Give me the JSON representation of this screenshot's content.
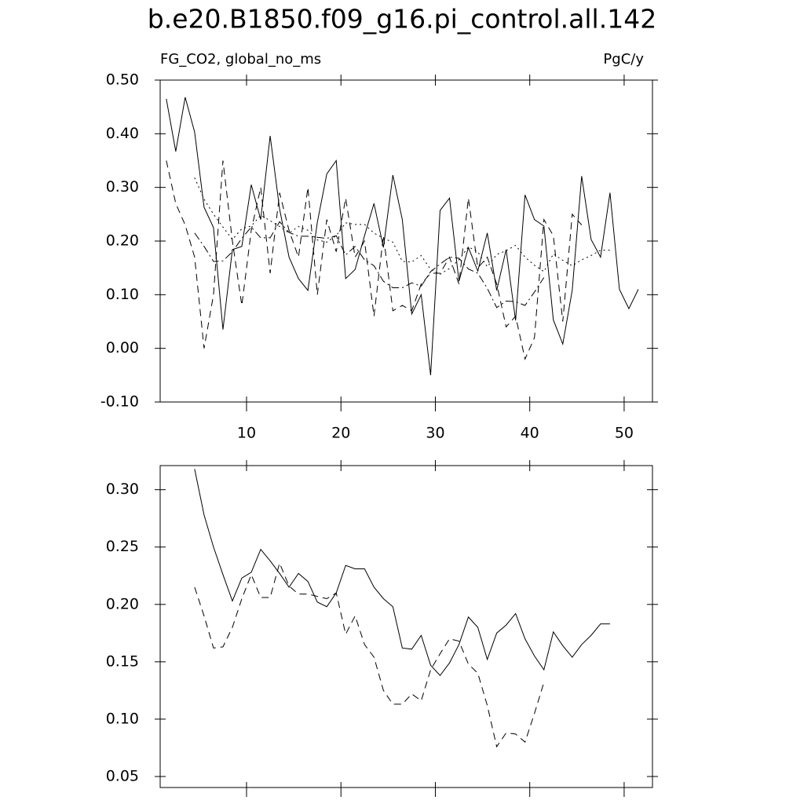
{
  "chart_data": [
    {
      "type": "line",
      "title": "b.e20.B1850.f09_g16.pi_control.all.142",
      "left_string": "FG_CO2, global_no_ms",
      "right_string": "PgC/y",
      "x": [
        1.5,
        2.5,
        3.5,
        4.5,
        5.5,
        6.5,
        7.5,
        8.5,
        9.5,
        10.5,
        11.5,
        12.5,
        13.5,
        14.5,
        15.5,
        16.5,
        17.5,
        18.5,
        19.5,
        20.5,
        21.5,
        22.5,
        23.5,
        24.5,
        25.5,
        26.5,
        27.5,
        28.5,
        29.5,
        30.5,
        31.5,
        32.5,
        33.5,
        34.5,
        35.5,
        36.5,
        37.5,
        38.5,
        39.5,
        40.5,
        41.5,
        42.5,
        43.5,
        44.5,
        45.5,
        46.5,
        47.5,
        48.5,
        49.5,
        50.5,
        51.5
      ],
      "xlim": [
        0.85,
        53
      ],
      "xticks": [
        10,
        20,
        30,
        40,
        50
      ],
      "ylim": [
        -0.1,
        0.5
      ],
      "yticks": [
        {
          "value": -0.1,
          "label": "-0.10"
        },
        {
          "value": 0,
          "label": "0.00"
        },
        {
          "value": 0.1,
          "label": "0.10"
        },
        {
          "value": 0.2,
          "label": "0.20"
        },
        {
          "value": 0.3,
          "label": "0.30"
        },
        {
          "value": 0.4,
          "label": "0.40"
        },
        {
          "value": 0.5,
          "label": "0.50"
        }
      ],
      "series": [
        {
          "color": "#000000",
          "dash": "solid",
          "values": [
            0.465,
            0.367,
            0.468,
            0.403,
            0.263,
            0.225,
            0.035,
            0.184,
            0.19,
            0.305,
            0.24,
            0.396,
            0.26,
            0.17,
            0.13,
            0.108,
            0.235,
            0.325,
            0.35,
            0.13,
            0.147,
            0.21,
            0.27,
            0.188,
            0.323,
            0.24,
            0.064,
            0.1,
            -0.05,
            0.257,
            0.28,
            0.125,
            0.188,
            0.144,
            0.215,
            0.108,
            0.184,
            0.052,
            0.286,
            0.24,
            0.228,
            0.053,
            0.008,
            0.108,
            0.321,
            0.203,
            0.17,
            0.29,
            0.11,
            0.074,
            0.11
          ]
        },
        {
          "color": "#000000",
          "dash": "dashed",
          "values": [
            0.35,
            0.27,
            0.23,
            0.17,
            0.0,
            0.1,
            0.35,
            0.2,
            0.08,
            0.22,
            0.3,
            0.14,
            0.29,
            0.22,
            0.17,
            0.3,
            0.1,
            0.24,
            0.18,
            0.28,
            0.17,
            0.2,
            0.06,
            0.21,
            0.07,
            0.08,
            0.07,
            0.12,
            0.14,
            0.14,
            0.17,
            0.12,
            0.28,
            0.15,
            0.17,
            0.12,
            0.04,
            0.06,
            -0.02,
            0.02,
            0.24,
            0.21,
            0.05,
            0.25,
            0.23,
            null,
            null,
            null,
            null,
            null,
            null
          ]
        },
        {
          "color": "#000000",
          "dash": "dotted",
          "values": [
            null,
            null,
            null,
            0.318,
            0.278,
            0.25,
            0.226,
            0.203,
            0.223,
            0.228,
            0.248,
            0.238,
            0.227,
            0.215,
            0.227,
            0.22,
            0.202,
            0.198,
            0.21,
            0.234,
            0.231,
            0.231,
            0.215,
            0.205,
            0.198,
            0.162,
            0.161,
            0.173,
            0.147,
            0.138,
            0.149,
            0.165,
            0.189,
            0.18,
            0.152,
            0.175,
            0.182,
            0.192,
            0.17,
            0.155,
            0.143,
            0.176,
            0.164,
            0.154,
            0.165,
            0.173,
            0.183,
            0.183,
            null,
            null,
            null
          ]
        },
        {
          "color": "#000000",
          "dash": "dashdot",
          "values": [
            null,
            null,
            null,
            0.215,
            0.19,
            0.162,
            0.163,
            0.18,
            0.205,
            0.226,
            0.206,
            0.206,
            0.236,
            0.216,
            0.209,
            0.209,
            0.207,
            0.205,
            0.21,
            0.174,
            0.19,
            0.165,
            0.154,
            0.125,
            0.113,
            0.113,
            0.122,
            0.116,
            0.143,
            0.157,
            0.17,
            0.168,
            0.148,
            0.14,
            0.112,
            0.076,
            0.088,
            0.087,
            0.08,
            0.105,
            0.132,
            null,
            null,
            null,
            null,
            null,
            null,
            null,
            null,
            null,
            null
          ]
        }
      ]
    },
    {
      "type": "line",
      "x": [
        1.5,
        2.5,
        3.5,
        4.5,
        5.5,
        6.5,
        7.5,
        8.5,
        9.5,
        10.5,
        11.5,
        12.5,
        13.5,
        14.5,
        15.5,
        16.5,
        17.5,
        18.5,
        19.5,
        20.5,
        21.5,
        22.5,
        23.5,
        24.5,
        25.5,
        26.5,
        27.5,
        28.5,
        29.5,
        30.5,
        31.5,
        32.5,
        33.5,
        34.5,
        35.5,
        36.5,
        37.5,
        38.5,
        39.5,
        40.5,
        41.5,
        42.5,
        43.5,
        44.5,
        45.5,
        46.5,
        47.5,
        48.5,
        49.5,
        50.5,
        51.5
      ],
      "xlim": [
        0.85,
        53
      ],
      "xticks": [
        10,
        20,
        30,
        40,
        50
      ],
      "ylim": [
        0.0404,
        0.321
      ],
      "yticks": [
        {
          "value": 0.05,
          "label": "0.05"
        },
        {
          "value": 0.1,
          "label": "0.10"
        },
        {
          "value": 0.15,
          "label": "0.15"
        },
        {
          "value": 0.2,
          "label": "0.20"
        },
        {
          "value": 0.25,
          "label": "0.25"
        },
        {
          "value": 0.3,
          "label": "0.30"
        }
      ],
      "series": [
        {
          "color": "#000000",
          "dash": "solid",
          "values": [
            null,
            null,
            null,
            0.318,
            0.278,
            0.25,
            0.226,
            0.203,
            0.223,
            0.228,
            0.248,
            0.238,
            0.227,
            0.215,
            0.227,
            0.22,
            0.202,
            0.198,
            0.21,
            0.234,
            0.231,
            0.231,
            0.215,
            0.205,
            0.198,
            0.162,
            0.161,
            0.173,
            0.147,
            0.138,
            0.149,
            0.165,
            0.189,
            0.18,
            0.152,
            0.175,
            0.182,
            0.192,
            0.17,
            0.155,
            0.143,
            0.176,
            0.164,
            0.154,
            0.165,
            0.173,
            0.183,
            0.183,
            null,
            null,
            null
          ]
        },
        {
          "color": "#000000",
          "dash": "dashed",
          "values": [
            null,
            null,
            null,
            0.215,
            0.19,
            0.162,
            0.163,
            0.18,
            0.205,
            0.226,
            0.206,
            0.206,
            0.236,
            0.216,
            0.209,
            0.209,
            0.207,
            0.205,
            0.21,
            0.174,
            0.19,
            0.165,
            0.154,
            0.125,
            0.113,
            0.113,
            0.122,
            0.116,
            0.143,
            0.157,
            0.17,
            0.168,
            0.148,
            0.14,
            0.112,
            0.076,
            0.088,
            0.087,
            0.08,
            0.105,
            0.132,
            null,
            null,
            null,
            null,
            null,
            null,
            null,
            null,
            null,
            null
          ]
        }
      ]
    }
  ]
}
